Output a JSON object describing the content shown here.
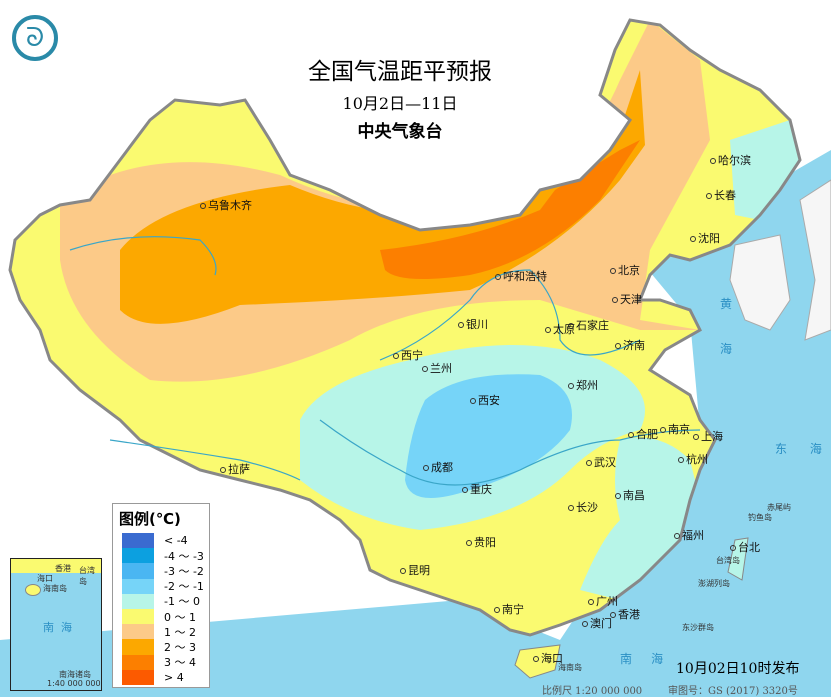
{
  "header": {
    "title": "全国气温距平预报",
    "period": "10月2日—11日",
    "agency": "中央气象台",
    "logo_icon": "cma-logo-icon"
  },
  "legend": {
    "title": "图例(℃)",
    "items": [
      {
        "label": "< -4",
        "color": "#3a6bd0"
      },
      {
        "label": "-4 ～ -3",
        "color": "#0ca0e0"
      },
      {
        "label": "-3 ～ -2",
        "color": "#4ab6f2"
      },
      {
        "label": "-2 ～ -1",
        "color": "#76d4f8"
      },
      {
        "label": "-1 ～ 0",
        "color": "#b7f5e8"
      },
      {
        "label": "0 ～ 1",
        "color": "#fafa70"
      },
      {
        "label": "1 ～ 2",
        "color": "#fcca88"
      },
      {
        "label": "2 ～ 3",
        "color": "#fca800"
      },
      {
        "label": "3 ～ 4",
        "color": "#fc7f00"
      },
      {
        "label": "> 4",
        "color": "#fc5a00"
      }
    ]
  },
  "cities": [
    {
      "name": "乌鲁木齐"
    },
    {
      "name": "哈尔滨"
    },
    {
      "name": "长春"
    },
    {
      "name": "沈阳"
    },
    {
      "name": "北京"
    },
    {
      "name": "天津"
    },
    {
      "name": "呼和浩特"
    },
    {
      "name": "石家庄"
    },
    {
      "name": "太原"
    },
    {
      "name": "济南"
    },
    {
      "name": "银川"
    },
    {
      "name": "西宁"
    },
    {
      "name": "兰州"
    },
    {
      "name": "西安"
    },
    {
      "name": "郑州"
    },
    {
      "name": "合肥"
    },
    {
      "name": "南京"
    },
    {
      "name": "上海"
    },
    {
      "name": "杭州"
    },
    {
      "name": "武汉"
    },
    {
      "name": "成都"
    },
    {
      "name": "重庆"
    },
    {
      "name": "长沙"
    },
    {
      "name": "南昌"
    },
    {
      "name": "福州"
    },
    {
      "name": "台北"
    },
    {
      "name": "拉萨"
    },
    {
      "name": "贵阳"
    },
    {
      "name": "昆明"
    },
    {
      "name": "南宁"
    },
    {
      "name": "广州"
    },
    {
      "name": "香港"
    },
    {
      "name": "澳门"
    },
    {
      "name": "海口"
    }
  ],
  "labels": {
    "east_sea": [
      "东",
      "海"
    ],
    "south_sea": [
      "南",
      "海"
    ],
    "yellow_sea": [
      "黄",
      "海"
    ],
    "taiwan_island": "台湾岛",
    "hainan_island": "海南岛",
    "diaoyu": "钓鱼岛",
    "chiwei": "赤尾屿",
    "penghu": "澎湖列岛",
    "dongsha": "东沙群岛"
  },
  "inset": {
    "labels": [
      "海口",
      "海南岛",
      "香港",
      "台湾岛",
      "南",
      "海",
      "南海诸岛"
    ],
    "scale": "1:40 000 000"
  },
  "footer": {
    "published": "10月02日10时发布",
    "scale": "比例尺 1:20 000 000",
    "map_no": "审图号：GS (2017) 3320号"
  },
  "colors": {
    "sea": "#8fd6ee",
    "border": "#888888",
    "river": "#3aa6c8"
  }
}
